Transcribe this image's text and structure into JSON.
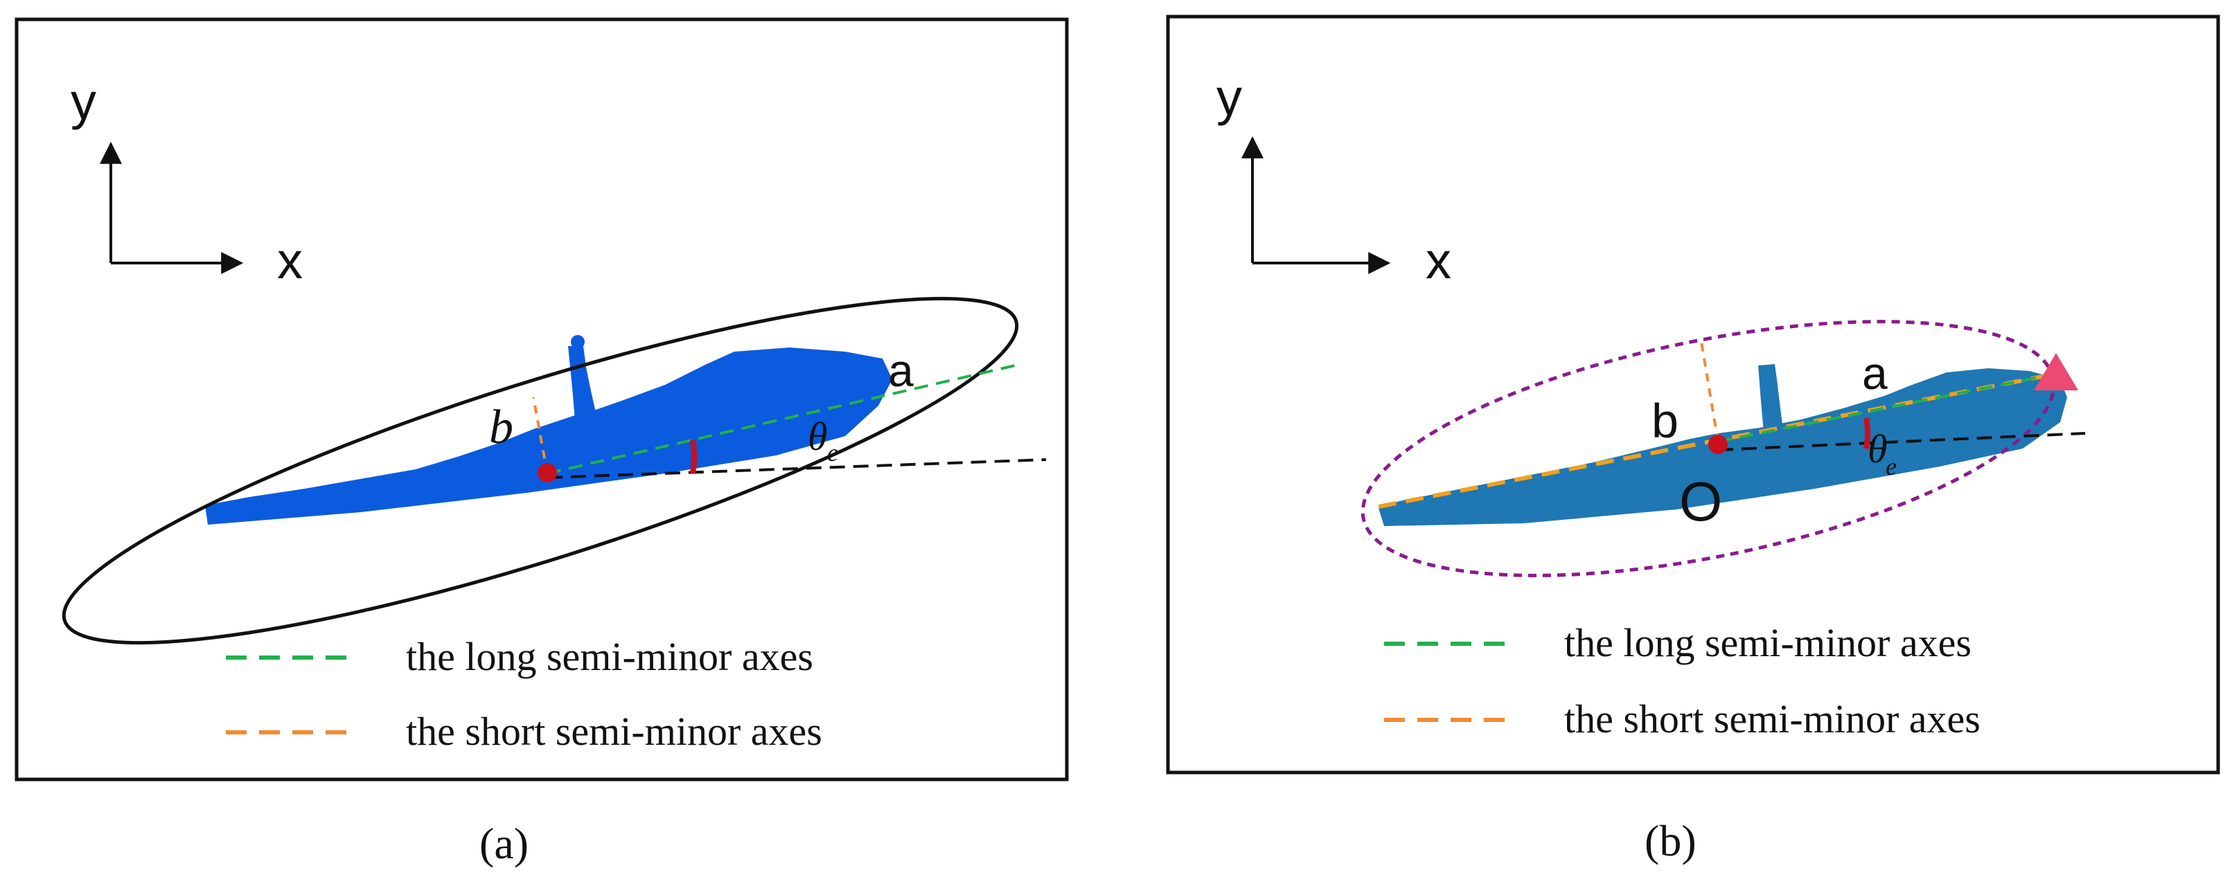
{
  "panels": [
    {
      "caption": "(a)",
      "axis_labels": {
        "x": "x",
        "y": "y"
      },
      "semi_axis_labels": {
        "long": "a",
        "short": "b",
        "angle": "θ",
        "angle_sub": "e"
      },
      "ellipse_style": "solid black",
      "legend": [
        {
          "text": "the long semi-minor axes",
          "color": "#22b04b"
        },
        {
          "text": "the short semi-minor axes",
          "color": "#f28a30"
        }
      ],
      "cloud_color": "#0b5bde"
    },
    {
      "caption": "(b)",
      "axis_labels": {
        "x": "x",
        "y": "y"
      },
      "semi_axis_labels": {
        "long": "a",
        "short": "b",
        "angle": "θ",
        "angle_sub": "e",
        "origin": "O"
      },
      "ellipse_style": "dashed purple",
      "legend": [
        {
          "text": "the long semi-minor axes",
          "color": "#22b04b"
        },
        {
          "text": "the short semi-minor axes",
          "color": "#f28a30"
        }
      ],
      "cloud_color": "#1f77b4",
      "endpoint_marker_color": "#ec4a70"
    }
  ],
  "colors": {
    "black_dash": "#111111",
    "center_dot": "#c8101e",
    "angle_arc": "#c8101e",
    "purple_ellipse": "#8a1a8e"
  }
}
